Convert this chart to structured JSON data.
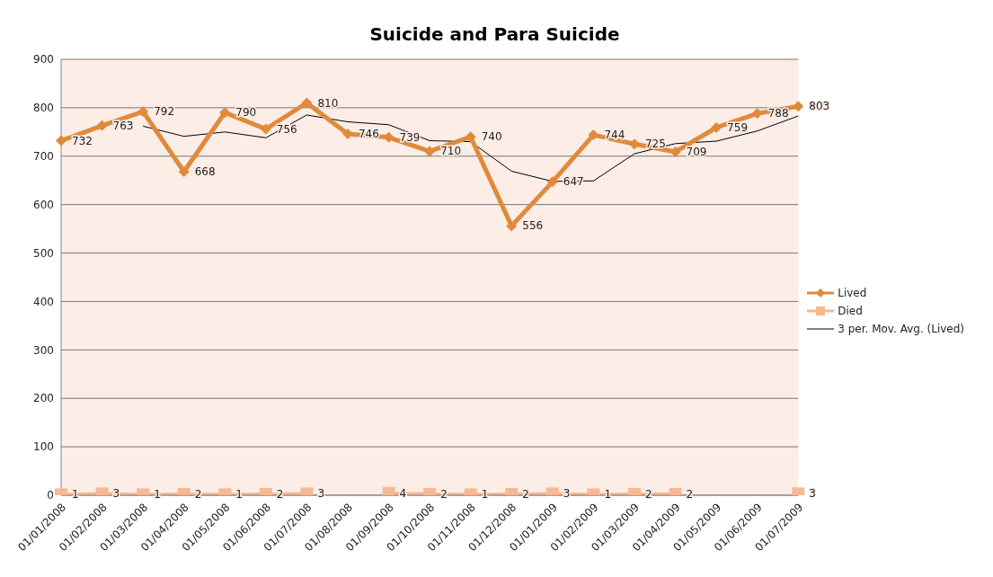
{
  "chart_data": {
    "type": "line",
    "title": "Suicide and Para Suicide",
    "categories": [
      "01/01/2008",
      "01/02/2008",
      "01/03/2008",
      "01/04/2008",
      "01/05/2008",
      "01/06/2008",
      "01/07/2008",
      "01/08/2008",
      "01/09/2008",
      "01/10/2008",
      "01/11/2008",
      "01/12/2008",
      "01/01/2009",
      "01/02/2009",
      "01/03/2009",
      "01/04/2009",
      "01/05/2009",
      "01/06/2009",
      "01/07/2009"
    ],
    "series": [
      {
        "name": "Lived",
        "color": "#e08a3c",
        "marker": "diamond",
        "values": [
          732,
          763,
          792,
          668,
          790,
          756,
          810,
          746,
          739,
          710,
          740,
          556,
          647,
          744,
          725,
          709,
          759,
          788,
          803
        ],
        "value_labels": [
          "732",
          "763",
          "792",
          "668",
          "790",
          "756",
          "810",
          "746",
          "739",
          "710",
          "740",
          "556",
          "647",
          "744",
          "725",
          "709",
          "759",
          "788",
          "803"
        ]
      },
      {
        "name": "Died",
        "color": "#f7b892",
        "marker": "square",
        "values": [
          1,
          3,
          1,
          2,
          1,
          2,
          3,
          null,
          4,
          2,
          1,
          2,
          3,
          1,
          2,
          2,
          null,
          null,
          3
        ],
        "value_labels": [
          "1",
          "3",
          "1",
          "2",
          "1",
          "2",
          "3",
          null,
          "4",
          "2",
          "1",
          "2",
          "3",
          "1",
          "2",
          "2",
          null,
          null,
          "3"
        ]
      },
      {
        "name": "3 per. Mov. Avg. (Lived)",
        "color": "#000000",
        "marker": "none",
        "values": [
          null,
          null,
          762,
          741,
          750,
          738,
          785,
          771,
          765,
          732,
          730,
          669,
          648,
          649,
          705,
          726,
          731,
          752,
          783
        ]
      }
    ],
    "ylim": [
      0,
      900
    ],
    "yticks": [
      0,
      100,
      200,
      300,
      400,
      500,
      600,
      700,
      800,
      900
    ],
    "grid": "y",
    "legend": "right"
  }
}
